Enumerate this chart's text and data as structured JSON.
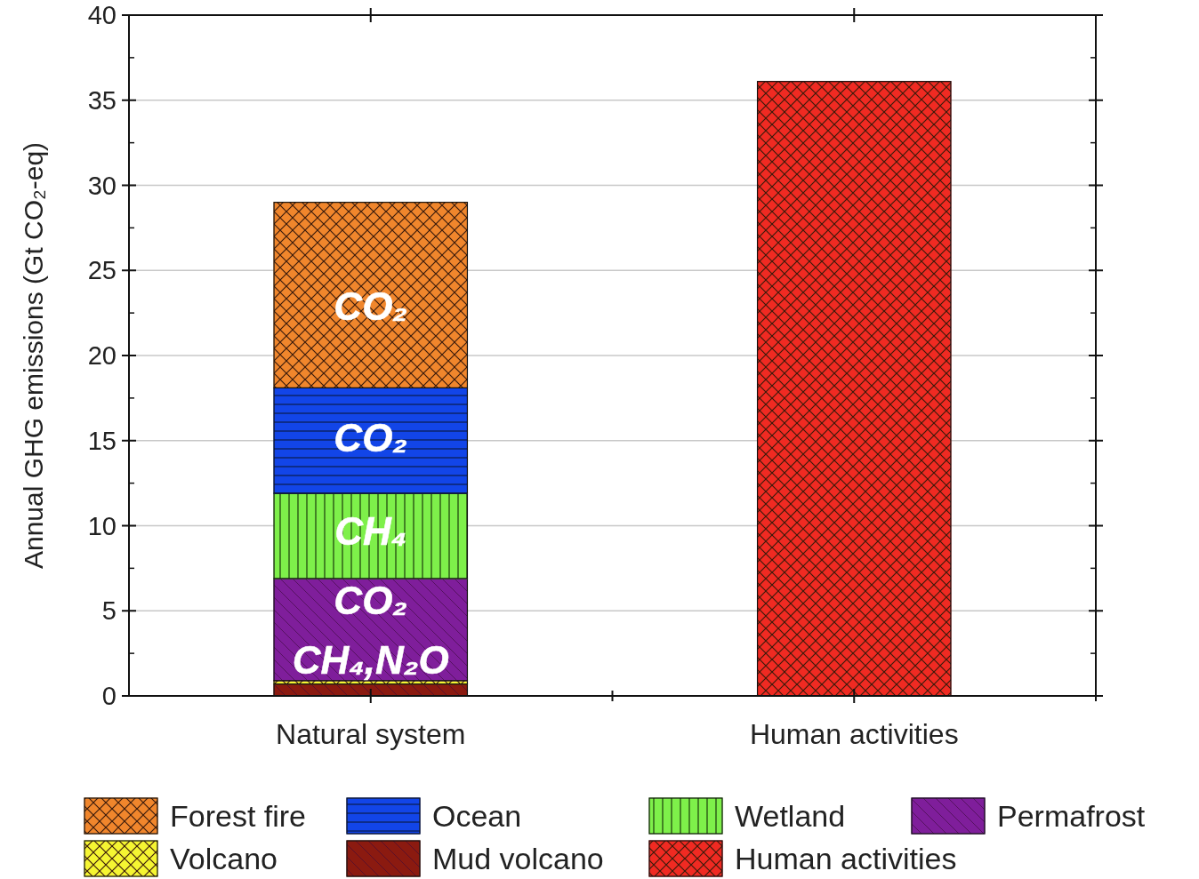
{
  "chart_data": {
    "type": "bar",
    "stacked": true,
    "ylabel": "Annual GHG emissions (Gt CO₂-eq)",
    "categories": [
      "Natural system",
      "Human activities"
    ],
    "series": [
      {
        "name": "Human activities",
        "color": "#f02a22",
        "values": [
          null,
          36.1
        ]
      },
      {
        "name": "Mud volcano",
        "color": "#8b1a10",
        "values": [
          0.7,
          null
        ]
      },
      {
        "name": "Volcano",
        "color": "#f5f532",
        "values": [
          0.2,
          null
        ]
      },
      {
        "name": "Permafrost",
        "color": "#7f1e9b",
        "values": [
          6.0,
          null
        ]
      },
      {
        "name": "Wetland",
        "color": "#7ef04a",
        "values": [
          5.0,
          null
        ]
      },
      {
        "name": "Ocean",
        "color": "#1245e8",
        "values": [
          6.2,
          null
        ]
      },
      {
        "name": "Forest fire",
        "color": "#f0862c",
        "values": [
          10.9,
          null
        ]
      }
    ],
    "ylim": [
      0,
      40
    ],
    "yticks": [
      0,
      5,
      10,
      15,
      20,
      25,
      30,
      35,
      40
    ],
    "grid": "y",
    "legend": "bottom",
    "annotations": [
      "CO₂",
      "CO₂",
      "CH₄",
      "CO₂",
      "CH₄,N₂O"
    ]
  }
}
